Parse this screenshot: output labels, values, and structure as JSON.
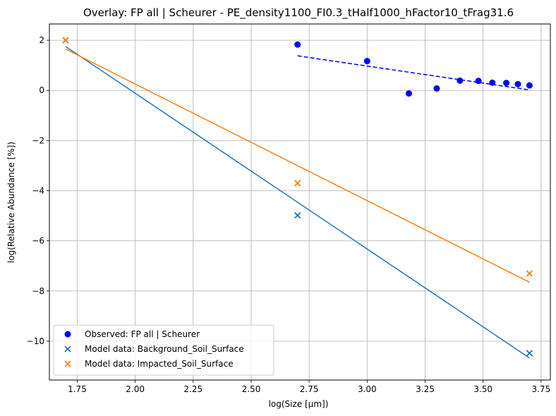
{
  "chart_data": {
    "type": "scatter",
    "title": "Overlay: FP all | Scheurer - PE_density1100_FI0.3_tHalf1000_hFactor10_tFrag31.6",
    "xlabel": "log(Size [μm])",
    "ylabel": "log(Relative Abundance [%])",
    "xlim": [
      1.63,
      3.79
    ],
    "ylim": [
      -11.55,
      2.65
    ],
    "xticks": [
      1.75,
      2.0,
      2.25,
      2.5,
      2.75,
      3.0,
      3.25,
      3.5,
      3.75
    ],
    "xtick_labels": [
      "1.75",
      "2.00",
      "2.25",
      "2.50",
      "2.75",
      "3.00",
      "3.25",
      "3.50",
      "3.75"
    ],
    "yticks": [
      2,
      0,
      -2,
      -4,
      -6,
      -8,
      -10
    ],
    "ytick_labels": [
      "2",
      "0",
      "−2",
      "−4",
      "−6",
      "−8",
      "−10"
    ],
    "grid": true,
    "legend_position": "lower-left",
    "series": [
      {
        "name": "Observed: FP all | Scheurer",
        "marker": "circle",
        "color": "#0000ff",
        "x": [
          2.7,
          3.0,
          3.18,
          3.3,
          3.4,
          3.48,
          3.54,
          3.6,
          3.65,
          3.7
        ],
        "y": [
          1.83,
          1.17,
          -0.12,
          0.08,
          0.39,
          0.38,
          0.31,
          0.3,
          0.25,
          0.2
        ],
        "fit": {
          "x": [
            2.7,
            3.7
          ],
          "y": [
            1.38,
            0.02
          ],
          "style": "dashed"
        }
      },
      {
        "name": "Model data: Background_Soil_Surface",
        "marker": "x",
        "color": "#1f77b4",
        "x": [
          1.7,
          2.7,
          3.7
        ],
        "y": [
          2.0,
          -4.98,
          -10.48
        ],
        "fit": {
          "x": [
            1.7,
            3.7
          ],
          "y": [
            1.75,
            -10.67
          ],
          "style": "solid"
        }
      },
      {
        "name": "Model data: Impacted_Soil_Surface",
        "marker": "x",
        "color": "#ff7f0e",
        "x": [
          1.7,
          2.7,
          3.7
        ],
        "y": [
          2.0,
          -3.7,
          -7.3
        ],
        "fit": {
          "x": [
            1.7,
            3.7
          ],
          "y": [
            1.65,
            -7.65
          ],
          "style": "solid"
        }
      }
    ]
  }
}
